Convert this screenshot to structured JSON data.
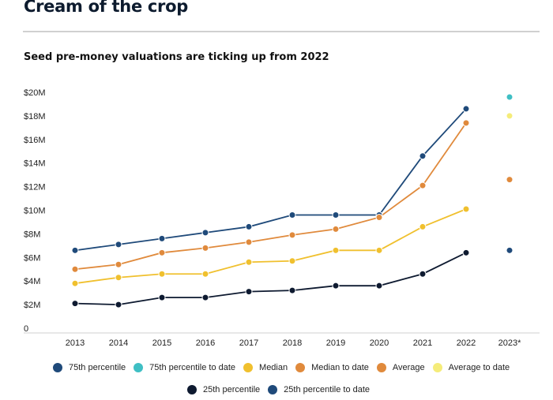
{
  "header": {
    "title": "Cream of the crop",
    "subtitle": "Seed pre-money valuations are ticking up from 2022"
  },
  "chart_data": {
    "type": "line",
    "title": "Seed pre-money valuations are ticking up from 2022",
    "xlabel": "",
    "ylabel": "",
    "categories": [
      "2013",
      "2014",
      "2015",
      "2016",
      "2017",
      "2018",
      "2019",
      "2020",
      "2021",
      "2022",
      "2023*"
    ],
    "y_ticks": [
      "0",
      "$2M",
      "$4M",
      "$6M",
      "$8M",
      "$10M",
      "$12M",
      "$14M",
      "$16M",
      "$18M",
      "$20M"
    ],
    "ylim": [
      0,
      20
    ],
    "y_unit": "$M",
    "grid": false,
    "legend_position": "bottom",
    "series": [
      {
        "name": "75th percentile",
        "color": "#1f4a7a",
        "line": true,
        "values": [
          6.6,
          7.1,
          7.6,
          8.1,
          8.6,
          9.6,
          9.6,
          9.6,
          14.6,
          18.6,
          null
        ]
      },
      {
        "name": "75th percentile to date",
        "color": "#3fbfc4",
        "line": false,
        "values": [
          null,
          null,
          null,
          null,
          null,
          null,
          null,
          null,
          null,
          null,
          19.6
        ]
      },
      {
        "name": "Median",
        "color": "#f0c02e",
        "line": true,
        "values": [
          3.8,
          4.3,
          4.6,
          4.6,
          5.6,
          5.7,
          6.6,
          6.6,
          8.6,
          10.1,
          null
        ]
      },
      {
        "name": "Median to date",
        "color": "#e08a3c",
        "line": false,
        "values": [
          null,
          null,
          null,
          null,
          null,
          null,
          null,
          null,
          null,
          null,
          12.6
        ]
      },
      {
        "name": "Average",
        "color": "#e08a3c",
        "line": true,
        "values": [
          5.0,
          5.4,
          6.4,
          6.8,
          7.3,
          7.9,
          8.4,
          9.4,
          12.1,
          17.4,
          null
        ]
      },
      {
        "name": "Average to date",
        "color": "#f5ec7a",
        "line": false,
        "values": [
          null,
          null,
          null,
          null,
          null,
          null,
          null,
          null,
          null,
          null,
          18.0
        ]
      },
      {
        "name": "25th percentile",
        "color": "#0e1a30",
        "line": true,
        "values": [
          2.1,
          2.0,
          2.6,
          2.6,
          3.1,
          3.2,
          3.6,
          3.6,
          4.6,
          6.4,
          null
        ]
      },
      {
        "name": "25th percentile to date",
        "color": "#1f4a7a",
        "line": false,
        "values": [
          null,
          null,
          null,
          null,
          null,
          null,
          null,
          null,
          null,
          null,
          6.6
        ]
      }
    ],
    "legend_rows": [
      [
        0,
        1,
        2,
        3,
        4,
        5
      ],
      [
        6,
        7
      ]
    ]
  }
}
